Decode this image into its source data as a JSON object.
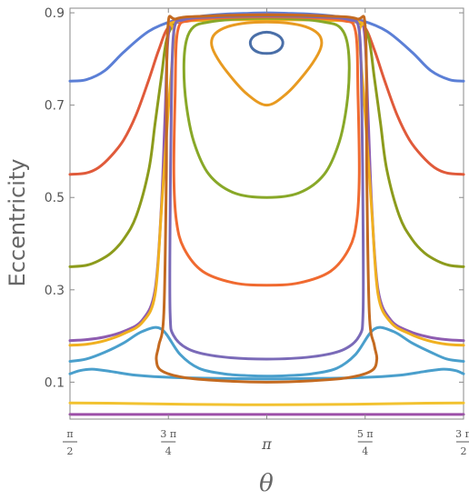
{
  "chart_data": {
    "type": "line",
    "title": "",
    "xlabel": "θ",
    "ylabel": "Eccentricity",
    "xlim": [
      1.5708,
      4.7124
    ],
    "ylim": [
      0.02,
      0.91
    ],
    "grid": false,
    "y_ticks": [
      {
        "value": 0.1,
        "label": "0.1"
      },
      {
        "value": 0.3,
        "label": "0.3"
      },
      {
        "value": 0.5,
        "label": "0.5"
      },
      {
        "value": 0.7,
        "label": "0.7"
      },
      {
        "value": 0.9,
        "label": "0.9"
      }
    ],
    "x_ticks": [
      {
        "value": 1.5708,
        "num": "π",
        "den": "2"
      },
      {
        "value": 2.3562,
        "num": "3 π",
        "den": "4"
      },
      {
        "value": 3.1416,
        "label": "π"
      },
      {
        "value": 3.927,
        "num": "5 π",
        "den": "4"
      },
      {
        "value": 4.7124,
        "num": "3 π",
        "den": "2"
      }
    ],
    "series": [
      {
        "color": "#5b7fd6",
        "kind": "open",
        "x": [
          1.5708,
          1.7,
          1.85,
          2.0,
          2.2,
          2.4,
          2.6,
          2.8,
          3.0,
          3.1416,
          3.3,
          3.5,
          3.7,
          3.9,
          4.1,
          4.3,
          4.45,
          4.6,
          4.7124
        ],
        "y": [
          0.752,
          0.755,
          0.775,
          0.815,
          0.86,
          0.883,
          0.892,
          0.897,
          0.899,
          0.9,
          0.899,
          0.897,
          0.892,
          0.883,
          0.86,
          0.815,
          0.775,
          0.755,
          0.752
        ]
      },
      {
        "color": "#e05a3a",
        "kind": "open",
        "x": [
          1.5708,
          1.7,
          1.8,
          1.9,
          2.0,
          2.1,
          2.2,
          2.28,
          2.36,
          2.5,
          2.7,
          2.9,
          3.1416,
          3.4,
          3.6,
          3.8,
          3.92,
          4.0,
          4.08,
          4.18,
          4.28,
          4.38,
          4.48,
          4.58,
          4.7124
        ],
        "y": [
          0.55,
          0.553,
          0.565,
          0.59,
          0.625,
          0.68,
          0.755,
          0.82,
          0.87,
          0.887,
          0.893,
          0.895,
          0.896,
          0.895,
          0.893,
          0.887,
          0.87,
          0.82,
          0.755,
          0.68,
          0.625,
          0.59,
          0.565,
          0.553,
          0.55
        ]
      },
      {
        "color": "#8c9b1c",
        "kind": "open",
        "x": [
          1.5708,
          1.7,
          1.8,
          1.9,
          2.0,
          2.1,
          2.2,
          2.25,
          2.3,
          2.35,
          2.45,
          2.65,
          2.9,
          3.1416,
          3.4,
          3.65,
          3.85,
          3.95,
          4.0,
          4.05,
          4.1,
          4.2,
          4.3,
          4.4,
          4.5,
          4.6,
          4.7124
        ],
        "y": [
          0.35,
          0.353,
          0.363,
          0.38,
          0.41,
          0.46,
          0.56,
          0.66,
          0.76,
          0.85,
          0.883,
          0.888,
          0.889,
          0.89,
          0.889,
          0.888,
          0.883,
          0.85,
          0.76,
          0.66,
          0.56,
          0.46,
          0.41,
          0.38,
          0.363,
          0.353,
          0.35
        ]
      },
      {
        "color": "#8e5cb0",
        "kind": "open",
        "x": [
          1.5708,
          1.7,
          1.85,
          2.0,
          2.15,
          2.25,
          2.3,
          2.33,
          2.36,
          2.45,
          2.7,
          3.1416,
          3.6,
          3.85,
          3.92,
          3.95,
          3.98,
          4.03,
          4.13,
          4.28,
          4.43,
          4.58,
          4.7124
        ],
        "y": [
          0.19,
          0.192,
          0.198,
          0.21,
          0.235,
          0.3,
          0.48,
          0.68,
          0.86,
          0.88,
          0.885,
          0.886,
          0.885,
          0.88,
          0.86,
          0.68,
          0.48,
          0.3,
          0.235,
          0.21,
          0.198,
          0.192,
          0.19
        ]
      },
      {
        "color": "#f0b020",
        "kind": "open",
        "x": [
          1.5708,
          1.7,
          1.85,
          2.0,
          2.15,
          2.25,
          2.3,
          2.35,
          2.4,
          2.38,
          2.7,
          3.1416,
          3.6,
          3.9,
          3.88,
          3.93,
          3.98,
          4.03,
          4.13,
          4.28,
          4.43,
          4.58,
          4.7124
        ],
        "y": [
          0.18,
          0.182,
          0.19,
          0.205,
          0.23,
          0.29,
          0.47,
          0.67,
          0.85,
          0.878,
          0.884,
          0.885,
          0.884,
          0.878,
          0.85,
          0.67,
          0.47,
          0.29,
          0.23,
          0.205,
          0.19,
          0.182,
          0.18
        ]
      },
      {
        "color": "#4a9fcc",
        "kind": "open",
        "x": [
          1.5708,
          1.7,
          1.85,
          2.0,
          2.15,
          2.3,
          2.45,
          2.6,
          2.8,
          3.0,
          3.1416,
          3.3,
          3.5,
          3.7,
          3.85,
          4.0,
          4.15,
          4.3,
          4.45,
          4.58,
          4.7124
        ],
        "y": [
          0.145,
          0.15,
          0.165,
          0.185,
          0.21,
          0.215,
          0.16,
          0.13,
          0.118,
          0.114,
          0.113,
          0.114,
          0.118,
          0.13,
          0.16,
          0.215,
          0.21,
          0.185,
          0.165,
          0.15,
          0.145
        ]
      },
      {
        "color": "#4a9fcc",
        "kind": "open",
        "x": [
          1.5708,
          1.65,
          1.75,
          1.9,
          2.1,
          2.4,
          2.8,
          3.1416,
          3.5,
          3.9,
          4.2,
          4.4,
          4.55,
          4.65,
          4.7124
        ],
        "y": [
          0.118,
          0.125,
          0.128,
          0.123,
          0.115,
          0.11,
          0.108,
          0.107,
          0.108,
          0.11,
          0.115,
          0.123,
          0.128,
          0.125,
          0.118
        ]
      },
      {
        "color": "#f2c230",
        "kind": "open",
        "x": [
          1.5708,
          2.0,
          2.5,
          3.1416,
          3.8,
          4.3,
          4.7124
        ],
        "y": [
          0.055,
          0.054,
          0.052,
          0.051,
          0.052,
          0.054,
          0.055
        ]
      },
      {
        "color": "#9c4fa8",
        "kind": "open",
        "x": [
          1.5708,
          3.1416,
          4.7124
        ],
        "y": [
          0.03,
          0.03,
          0.03
        ]
      },
      {
        "color": "#4a6fa8",
        "kind": "closed",
        "x": [
          3.1416,
          3.2,
          3.25,
          3.27,
          3.25,
          3.2,
          3.1416,
          3.08,
          3.03,
          3.01,
          3.03,
          3.08
        ],
        "y": [
          0.858,
          0.855,
          0.847,
          0.835,
          0.822,
          0.814,
          0.812,
          0.814,
          0.822,
          0.835,
          0.847,
          0.855
        ]
      },
      {
        "color": "#e89a20",
        "kind": "closed",
        "x": [
          3.1416,
          3.3,
          3.45,
          3.55,
          3.58,
          3.55,
          3.45,
          3.3,
          3.1416,
          2.98,
          2.83,
          2.73,
          2.7,
          2.73,
          2.83,
          2.98
        ],
        "y": [
          0.88,
          0.878,
          0.87,
          0.855,
          0.835,
          0.81,
          0.77,
          0.725,
          0.7,
          0.725,
          0.77,
          0.81,
          0.835,
          0.855,
          0.87,
          0.878
        ]
      },
      {
        "color": "#88a828",
        "kind": "closed",
        "x": [
          3.1416,
          3.4,
          3.6,
          3.72,
          3.78,
          3.8,
          3.78,
          3.72,
          3.6,
          3.4,
          3.1416,
          2.88,
          2.68,
          2.56,
          2.5,
          2.48,
          2.5,
          2.56,
          2.68,
          2.88
        ],
        "y": [
          0.888,
          0.886,
          0.88,
          0.87,
          0.84,
          0.78,
          0.7,
          0.62,
          0.55,
          0.51,
          0.5,
          0.51,
          0.55,
          0.62,
          0.7,
          0.78,
          0.84,
          0.87,
          0.88,
          0.886
        ]
      },
      {
        "color": "#f06a30",
        "kind": "closed",
        "x": [
          3.1416,
          3.5,
          3.75,
          3.85,
          3.87,
          3.88,
          3.86,
          3.8,
          3.65,
          3.4,
          3.1416,
          2.88,
          2.63,
          2.48,
          2.42,
          2.4,
          2.41,
          2.43,
          2.53,
          2.78
        ],
        "y": [
          0.891,
          0.889,
          0.883,
          0.86,
          0.72,
          0.55,
          0.45,
          0.39,
          0.34,
          0.315,
          0.31,
          0.315,
          0.34,
          0.39,
          0.45,
          0.55,
          0.72,
          0.86,
          0.883,
          0.889
        ]
      },
      {
        "color": "#7a6ab8",
        "kind": "closed",
        "x": [
          3.1416,
          3.55,
          3.8,
          3.88,
          3.9,
          3.91,
          3.91,
          3.88,
          3.75,
          3.5,
          3.1416,
          2.78,
          2.53,
          2.4,
          2.37,
          2.37,
          2.38,
          2.4,
          2.48,
          2.73
        ],
        "y": [
          0.893,
          0.891,
          0.885,
          0.86,
          0.7,
          0.45,
          0.25,
          0.2,
          0.17,
          0.155,
          0.15,
          0.155,
          0.17,
          0.2,
          0.25,
          0.45,
          0.7,
          0.86,
          0.885,
          0.891
        ]
      },
      {
        "color": "#c46a20",
        "kind": "closed",
        "x": [
          3.1416,
          3.6,
          3.86,
          3.93,
          3.94,
          3.96,
          4.0,
          4.02,
          3.98,
          3.8,
          3.5,
          3.1416,
          2.78,
          2.48,
          2.3,
          2.26,
          2.28,
          2.32,
          2.34,
          2.35,
          2.42,
          2.68
        ],
        "y": [
          0.895,
          0.893,
          0.887,
          0.86,
          0.55,
          0.25,
          0.18,
          0.15,
          0.125,
          0.11,
          0.103,
          0.1,
          0.103,
          0.11,
          0.125,
          0.15,
          0.18,
          0.25,
          0.55,
          0.86,
          0.887,
          0.893
        ]
      }
    ]
  }
}
